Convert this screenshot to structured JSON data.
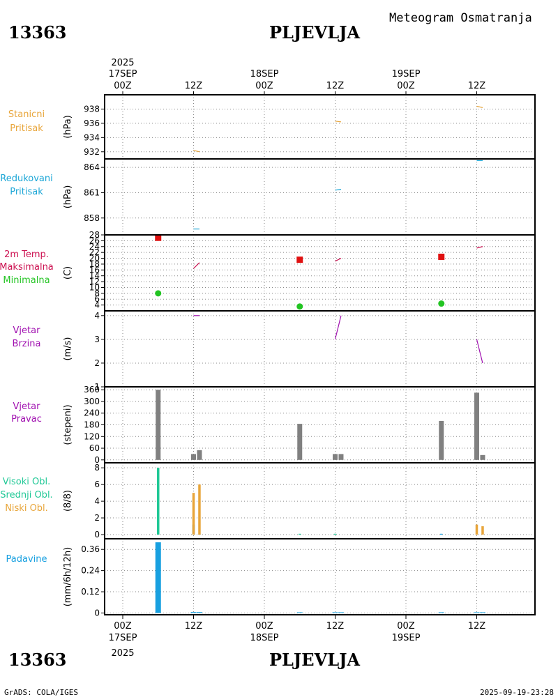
{
  "header": {
    "station_id": "13363",
    "station_name": "PLJEVLJA",
    "product_title": "Meteogram Osmatranja"
  },
  "footer": {
    "station_id": "13363",
    "station_name": "PLJEVLJA",
    "software": "GrADS: COLA/IGES",
    "generated": "2025-09-19-23:28"
  },
  "time_axis": {
    "year": "2025",
    "tick_labels": [
      "00Z",
      "12Z",
      "00Z",
      "12Z",
      "00Z",
      "12Z"
    ],
    "day_labels": [
      "17SEP",
      "18SEP",
      "19SEP"
    ]
  },
  "colors": {
    "orange": "#e8a53a",
    "cyan": "#1ba6d6",
    "crimson": "#cc1050",
    "red": "#e01010",
    "green": "#22c422",
    "purple": "#a010b0",
    "gray": "#808080",
    "teal": "#20c896",
    "blue": "#18a0e0"
  },
  "chart_data": [
    {
      "id": "stanicni",
      "type": "line",
      "title_lines": [
        "Stanicni",
        "Pritisak"
      ],
      "ylabel": "(hPa)",
      "ylim": [
        931,
        940
      ],
      "yticks": [
        932,
        934,
        936,
        938
      ],
      "series": [
        {
          "name": "Stanicni Pritisak",
          "color": "orange",
          "segments": [
            [
              [
                12,
                932.2
              ],
              [
                13,
                932.0
              ]
            ],
            [
              [
                36,
                936.3
              ],
              [
                37,
                936.2
              ]
            ],
            [
              [
                60,
                938.4
              ],
              [
                61,
                938.2
              ]
            ]
          ]
        }
      ]
    },
    {
      "id": "redukovani",
      "type": "line",
      "title_lines": [
        "Redukovani",
        "Pritisak"
      ],
      "ylabel": "(hPa)",
      "ylim": [
        856,
        865
      ],
      "yticks": [
        858,
        861,
        864
      ],
      "series": [
        {
          "name": "Redukovani Pritisak",
          "color": "cyan",
          "segments": [
            [
              [
                12,
                856.7
              ],
              [
                13,
                856.7
              ]
            ],
            [
              [
                36,
                861.3
              ],
              [
                37,
                861.4
              ]
            ],
            [
              [
                60,
                864.8
              ],
              [
                61,
                864.8
              ]
            ]
          ]
        }
      ]
    },
    {
      "id": "temperatura",
      "type": "scatter",
      "title_lines": [
        "2m Temp.",
        "Maksimalna",
        "Minimalna"
      ],
      "ylabel": "(C)",
      "ylim": [
        2,
        28
      ],
      "yticks": [
        4,
        6,
        8,
        10,
        12,
        14,
        16,
        18,
        20,
        22,
        24,
        26,
        28
      ],
      "yticklabels": [
        "4",
        "6",
        "8",
        "10",
        "12",
        "14",
        "16",
        "18",
        "20",
        "22",
        "24",
        "26",
        "28"
      ],
      "series": [
        {
          "name": "2m Temp.",
          "color": "crimson",
          "segments": [
            [
              [
                12,
                16.5
              ],
              [
                13,
                18.5
              ]
            ],
            [
              [
                36,
                19.0
              ],
              [
                37,
                20.0
              ]
            ],
            [
              [
                60,
                23.5
              ],
              [
                61,
                24.0
              ]
            ]
          ]
        },
        {
          "name": "Maksimalna",
          "color": "red",
          "marker": "square",
          "points": [
            [
              6,
              27.0
            ],
            [
              30,
              19.5
            ],
            [
              54,
              20.5
            ]
          ]
        },
        {
          "name": "Minimalna",
          "color": "green",
          "marker": "circle",
          "points": [
            [
              6,
              8.0
            ],
            [
              30,
              3.5
            ],
            [
              54,
              4.5
            ]
          ]
        }
      ]
    },
    {
      "id": "brzina",
      "type": "line",
      "title_lines": [
        "Vjetar",
        "Brzina"
      ],
      "ylabel": "(m/s)",
      "ylim": [
        1,
        4.2
      ],
      "yticks": [
        1,
        2,
        3,
        4
      ],
      "series": [
        {
          "name": "Vjetar Brzina",
          "color": "purple",
          "segments": [
            [
              [
                12,
                4.0
              ],
              [
                13,
                4.0
              ]
            ],
            [
              [
                36,
                3.0
              ],
              [
                37,
                4.0
              ]
            ],
            [
              [
                60,
                3.0
              ],
              [
                61,
                2.0
              ]
            ]
          ]
        }
      ]
    },
    {
      "id": "pravac",
      "type": "bar",
      "title_lines": [
        "Vjetar",
        "Pravac"
      ],
      "ylabel": "(stepeni)",
      "ylim": [
        -15,
        375
      ],
      "yticks": [
        0,
        60,
        120,
        180,
        240,
        300,
        360
      ],
      "series": [
        {
          "name": "Vjetar Pravac",
          "color": "gray",
          "bars": [
            [
              6,
              360
            ],
            [
              12,
              30
            ],
            [
              13,
              50
            ],
            [
              30,
              185
            ],
            [
              36,
              30
            ],
            [
              37,
              30
            ],
            [
              54,
              200
            ],
            [
              60,
              345
            ],
            [
              61,
              25
            ]
          ]
        }
      ]
    },
    {
      "id": "oblacnost",
      "type": "bar",
      "title_lines": [
        "Visoki Obl.",
        "Srednji Obl.",
        "Niski Obl."
      ],
      "ylabel": "(8/8)",
      "ylim": [
        -0.5,
        8.6
      ],
      "yticks": [
        0,
        2,
        4,
        6,
        8
      ],
      "series": [
        {
          "name": "Visoki Obl.",
          "color": "teal",
          "bars": [
            [
              6,
              8
            ],
            [
              36,
              0.1
            ],
            [
              30,
              0.1
            ]
          ]
        },
        {
          "name": "Srednji Obl.",
          "color": "blue",
          "bars": [
            [
              12,
              1.2
            ],
            [
              13,
              0.1
            ],
            [
              54,
              0.1
            ]
          ]
        },
        {
          "name": "Niski Obl.",
          "color": "orange",
          "bars": [
            [
              12,
              5
            ],
            [
              13,
              6
            ],
            [
              60,
              1.2
            ],
            [
              61,
              1.0
            ]
          ]
        }
      ]
    },
    {
      "id": "padavine",
      "type": "bar",
      "title_lines": [
        "Padavine"
      ],
      "ylabel": "(mm/6h/12h)",
      "ylim": [
        -0.01,
        0.42
      ],
      "yticks": [
        0,
        0.12,
        0.24,
        0.36
      ],
      "yticklabels": [
        "0",
        "0.12",
        "0.24",
        "0.36"
      ],
      "series": [
        {
          "name": "Padavine",
          "color": "blue",
          "bars": [
            [
              6,
              0.4
            ],
            [
              12,
              0.005
            ],
            [
              13,
              0.005
            ],
            [
              30,
              0.004
            ],
            [
              36,
              0.004
            ],
            [
              37,
              0.004
            ],
            [
              54,
              0.004
            ],
            [
              60,
              0.004
            ],
            [
              61,
              0.004
            ]
          ]
        }
      ]
    }
  ]
}
